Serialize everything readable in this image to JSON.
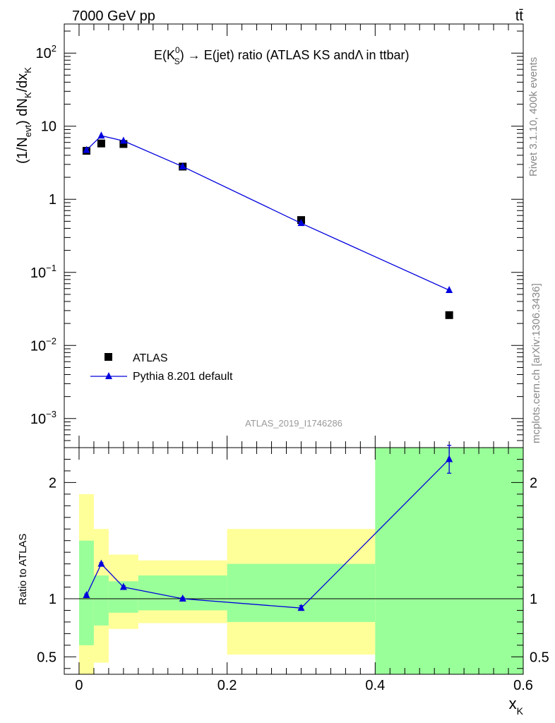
{
  "header": {
    "left": "7000 GeV pp",
    "right": "tt̄"
  },
  "side_labels": {
    "top": "Rivet 3.1.10,  400k events",
    "bottom": "mcplots.cern.ch [arXiv:1306.3436]"
  },
  "colors": {
    "data": "#000000",
    "mc": "#0000dd",
    "band_inner": "#99ff99",
    "band_outer": "#ffff99"
  },
  "chart_data": [
    {
      "type": "scatter",
      "panel": "main",
      "title": "E(K⁰ₛ) → E(jet) ratio (ATLAS KS andΛ in ttbar)",
      "title_parts": {
        "pre": "E(K",
        "sup": "0",
        "sub": "S",
        "post": ") → E(jet) ratio (ATLAS KS andΛ in ttbar)"
      },
      "ylabel": "(1/N_evt) dN_K/dx_K",
      "ylabel_parts": {
        "a": "(1/N",
        "sub1": "evt",
        "b": ") dN",
        "sub2": "K",
        "c": "/dx",
        "sub3": "K"
      },
      "yscale": "log",
      "xlim": [
        -0.02,
        0.6
      ],
      "ylim": [
        0.0004,
        250
      ],
      "yticks": [
        {
          "value": 100,
          "base": "10",
          "exp": "2"
        },
        {
          "value": 10,
          "base": "10",
          "exp": ""
        },
        {
          "value": 1,
          "base": "1",
          "exp": ""
        },
        {
          "value": 0.1,
          "base": "10",
          "exp": "−1"
        },
        {
          "value": 0.01,
          "base": "10",
          "exp": "−2"
        },
        {
          "value": 0.001,
          "base": "10",
          "exp": "−3"
        }
      ],
      "legend_position": "lower-left",
      "watermark": "ATLAS_2019_I1746286",
      "series": [
        {
          "name": "ATLAS",
          "marker": "square",
          "x": [
            0.01,
            0.03,
            0.06,
            0.14,
            0.3,
            0.5
          ],
          "y": [
            4.6,
            5.8,
            5.7,
            2.8,
            0.52,
            0.026
          ]
        },
        {
          "name": "Pythia 8.201 default",
          "marker": "triangle",
          "x": [
            0.01,
            0.03,
            0.06,
            0.14,
            0.3,
            0.5
          ],
          "y": [
            4.7,
            7.4,
            6.3,
            2.8,
            0.47,
            0.057
          ]
        }
      ]
    },
    {
      "type": "line",
      "panel": "ratio",
      "ylabel": "Ratio to ATLAS",
      "xlabel": "x_K",
      "xlabel_parts": {
        "a": "x",
        "sub": "K"
      },
      "xlim": [
        -0.02,
        0.6
      ],
      "ylim": [
        0.35,
        2.3
      ],
      "xticks": [
        0,
        0.2,
        0.4,
        0.6
      ],
      "xtick_labels": [
        "0",
        "0.2",
        "0.4",
        "0.6"
      ],
      "yticks": [
        0.5,
        1,
        2
      ],
      "ytick_labels": [
        "0.5",
        "1",
        "2"
      ],
      "bands": [
        {
          "x0": 0.0,
          "x1": 0.02,
          "inner": [
            0.6,
            1.5
          ],
          "outer": [
            0.35,
            1.9
          ]
        },
        {
          "x0": 0.02,
          "x1": 0.04,
          "inner": [
            0.77,
            1.2
          ],
          "outer": [
            0.45,
            1.6
          ]
        },
        {
          "x0": 0.04,
          "x1": 0.08,
          "inner": [
            0.88,
            1.15
          ],
          "outer": [
            0.74,
            1.38
          ]
        },
        {
          "x0": 0.08,
          "x1": 0.2,
          "inner": [
            0.9,
            1.2
          ],
          "outer": [
            0.79,
            1.33
          ]
        },
        {
          "x0": 0.2,
          "x1": 0.4,
          "inner": [
            0.8,
            1.3
          ],
          "outer": [
            0.52,
            1.6
          ]
        },
        {
          "x0": 0.4,
          "x1": 0.6,
          "inner": [
            0.35,
            2.3
          ],
          "outer": [
            0.35,
            2.3
          ]
        }
      ],
      "series": [
        {
          "name": "Pythia 8.201 default",
          "marker": "triangle",
          "x": [
            0.01,
            0.03,
            0.06,
            0.14,
            0.3,
            0.5
          ],
          "y": [
            1.03,
            1.3,
            1.1,
            1.0,
            0.92,
            2.2
          ],
          "yerr": [
            0.01,
            0.01,
            0.01,
            0.01,
            0.02,
            0.12
          ]
        }
      ]
    }
  ]
}
